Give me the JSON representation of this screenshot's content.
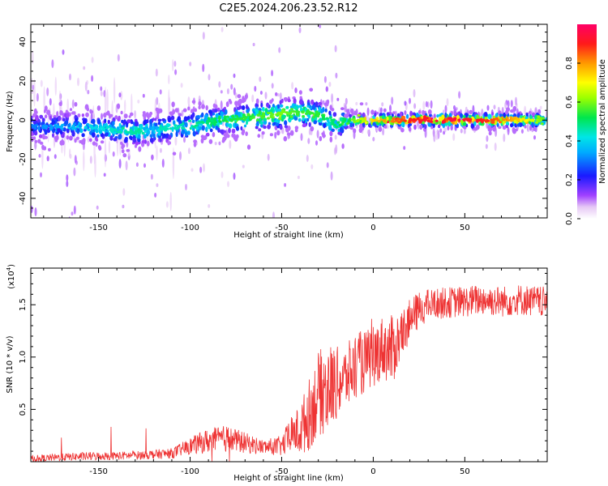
{
  "chart_data": [
    {
      "type": "heatmap",
      "title": "C2E5.2024.206.23.52.R12",
      "xlabel": "Height of straight line (km)",
      "ylabel": "Frequency (Hz)",
      "xlim": [
        -187,
        95
      ],
      "ylim": [
        -50,
        49
      ],
      "xticks": [
        -150,
        -100,
        -50,
        0,
        50
      ],
      "xtick_labels": [
        "-150",
        "-100",
        "-50",
        "0",
        "50"
      ],
      "yticks": [
        -40,
        -20,
        0,
        20,
        40
      ],
      "ytick_labels": [
        "-40",
        "-20",
        "0",
        "20",
        "40"
      ],
      "colorbar": {
        "label": "Normalized spectral amplitude",
        "range": [
          0,
          1
        ],
        "ticks": [
          0.0,
          0.2,
          0.4,
          0.6,
          0.8
        ],
        "tick_labels": [
          "0.0",
          "0.2",
          "0.4",
          "0.6",
          "0.8"
        ]
      },
      "ridge": {
        "x": [
          -187,
          -170,
          -155,
          -140,
          -130,
          -120,
          -110,
          -100,
          -90,
          -80,
          -70,
          -60,
          -50,
          -40,
          -30,
          -25,
          -20,
          -15,
          -10,
          0,
          20,
          40,
          60,
          80,
          95
        ],
        "freq_center": [
          -3,
          -3,
          -4,
          -5,
          -6,
          -5,
          -4,
          -3,
          -1,
          0,
          1,
          2,
          3,
          4,
          3,
          0,
          -2,
          -1,
          0,
          0,
          0,
          0,
          0,
          0,
          0
        ],
        "amplitude": [
          0.25,
          0.3,
          0.35,
          0.4,
          0.42,
          0.4,
          0.4,
          0.42,
          0.45,
          0.48,
          0.5,
          0.52,
          0.55,
          0.5,
          0.5,
          0.45,
          0.45,
          0.5,
          0.55,
          0.7,
          0.85,
          0.9,
          0.85,
          0.7,
          0.5
        ]
      }
    },
    {
      "type": "line",
      "xlabel": "Height of straight line (km)",
      "ylabel": "SNR (10 * v/v)",
      "multiplier_label": "(x10",
      "multiplier_exp": "4",
      "multiplier_close": ")",
      "xlim": [
        -187,
        95
      ],
      "ylim": [
        0,
        1.85
      ],
      "xticks": [
        -150,
        -100,
        -50,
        0,
        50
      ],
      "xtick_labels": [
        "-150",
        "-100",
        "-50",
        "0",
        "50"
      ],
      "yticks": [
        0.5,
        1.0,
        1.5
      ],
      "ytick_labels": [
        "0.5",
        "1.0",
        "1.5"
      ],
      "color": "#ee3333",
      "envelope": {
        "x": [
          -187,
          -160,
          -130,
          -110,
          -100,
          -90,
          -80,
          -70,
          -60,
          -50,
          -45,
          -40,
          -35,
          -30,
          -25,
          -20,
          -15,
          -10,
          -5,
          0,
          5,
          10,
          15,
          20,
          25,
          30,
          40,
          50,
          60,
          70,
          80,
          95
        ],
        "mean": [
          0.03,
          0.05,
          0.06,
          0.08,
          0.15,
          0.2,
          0.22,
          0.18,
          0.14,
          0.15,
          0.25,
          0.3,
          0.45,
          0.65,
          0.7,
          0.75,
          0.8,
          0.9,
          0.95,
          1.0,
          1.1,
          1.05,
          1.2,
          1.35,
          1.45,
          1.5,
          1.52,
          1.53,
          1.55,
          1.53,
          1.55,
          1.52
        ],
        "spread": [
          0.03,
          0.04,
          0.04,
          0.05,
          0.08,
          0.12,
          0.13,
          0.1,
          0.07,
          0.1,
          0.18,
          0.25,
          0.35,
          0.4,
          0.45,
          0.35,
          0.3,
          0.35,
          0.3,
          0.3,
          0.3,
          0.35,
          0.25,
          0.2,
          0.18,
          0.15,
          0.15,
          0.15,
          0.15,
          0.15,
          0.15,
          0.15
        ]
      }
    }
  ]
}
